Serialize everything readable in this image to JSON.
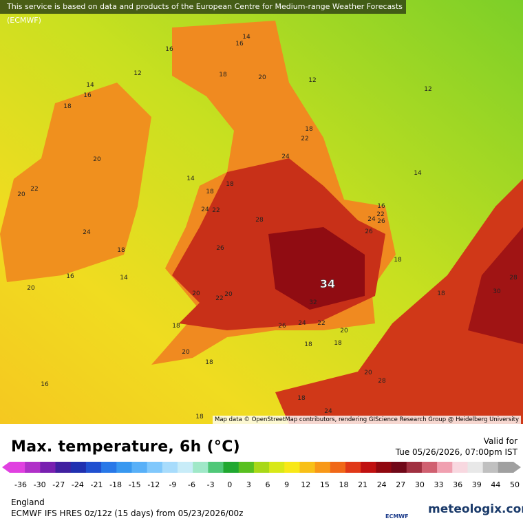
{
  "header": {
    "notice": "This service is based on data and products of the European Centre for Medium-range Weather Forecasts (ECMWF)",
    "attribution": "Map data © OpenStreetMap contributors, rendering GIScience Research Group @ Heidelberg University"
  },
  "map": {
    "labels": [
      "14",
      "16",
      "16",
      "12",
      "14",
      "16",
      "18",
      "18",
      "20",
      "12",
      "12",
      "18",
      "22",
      "20",
      "24",
      "14",
      "14",
      "18",
      "22",
      "20",
      "18",
      "24",
      "22",
      "16",
      "22",
      "24",
      "26",
      "28",
      "24",
      "26",
      "26",
      "18",
      "18",
      "16",
      "14",
      "20",
      "28",
      "34",
      "18",
      "20",
      "20",
      "22",
      "32",
      "18",
      "26",
      "24",
      "22",
      "20",
      "18",
      "18",
      "20",
      "18",
      "20",
      "28",
      "16",
      "18",
      "24",
      "18",
      "30"
    ]
  },
  "legend": {
    "title": "Max. temperature, 6h (°C)",
    "valid_label": "Valid for",
    "valid_time": "Tue 05/26/2026, 07:00pm IST",
    "ticks": [
      -36,
      -30,
      -27,
      -24,
      -21,
      -18,
      -15,
      -12,
      -9,
      -6,
      -3,
      0,
      3,
      6,
      9,
      12,
      15,
      18,
      21,
      24,
      27,
      30,
      33,
      36,
      39,
      44,
      50
    ],
    "colors": [
      "#e040e0",
      "#b030c8",
      "#7820b0",
      "#4020a0",
      "#2030b0",
      "#2050d0",
      "#2878e8",
      "#3898f0",
      "#58b0f8",
      "#80c8fc",
      "#a8dcfc",
      "#c8ecf8",
      "#a0e8c8",
      "#50c878",
      "#20a830",
      "#58c020",
      "#a8d818",
      "#d8e818",
      "#f8e818",
      "#f8c018",
      "#f89818",
      "#f06818",
      "#e03818",
      "#c01010",
      "#900810",
      "#700818",
      "#a03040",
      "#d06070",
      "#f0a0b0",
      "#f8d8e0",
      "#e8e8e8",
      "#c0c0c0",
      "#a0a0a0"
    ],
    "region": "England",
    "model": "ECMWF IFS HRES 0z/12z (15 days) from 05/23/2026/00z",
    "logo_small": "ECMWF",
    "logo_main": "meteologix.com"
  }
}
